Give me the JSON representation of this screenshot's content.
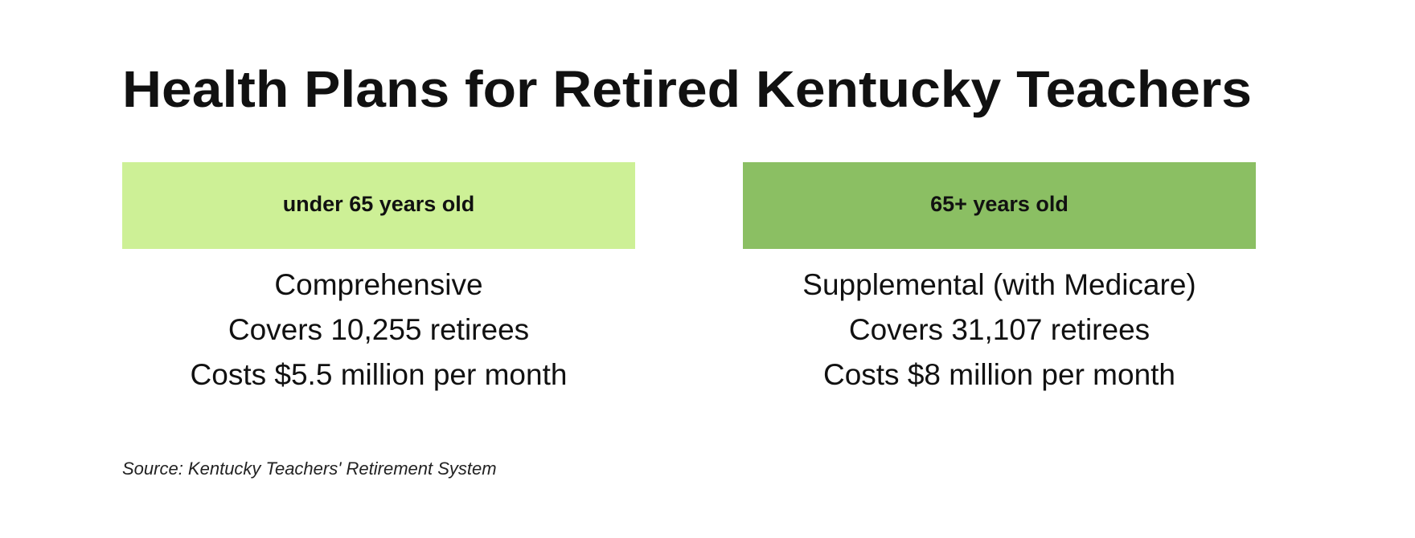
{
  "title": "Health Plans for Retired Kentucky Teachers",
  "columns": [
    {
      "header": "under 65 years old",
      "lines": [
        "Comprehensive",
        "Covers 10,255 retirees",
        "Costs $5.5 million per month"
      ]
    },
    {
      "header": "65+ years old",
      "lines": [
        "Supplemental (with Medicare)",
        "Covers 31,107 retirees",
        "Costs $8 million per month"
      ]
    }
  ],
  "source": "Source: Kentucky Teachers' Retirement System"
}
